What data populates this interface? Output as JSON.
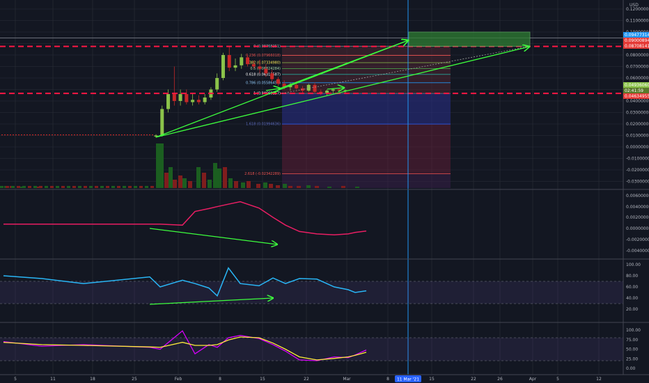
{
  "currency": "USD",
  "colors": {
    "background": "#131722",
    "grid": "#2a2e39",
    "bull": "#8bc34a",
    "bear": "#c62828",
    "arrow": "#3dff3d",
    "cursor": "#2196f3",
    "hline": "#ff1744",
    "macd": "#e91e63",
    "rsi": "#29b6f6",
    "stoch_k": "#d500f9",
    "stoch_d": "#ffeb3b"
  },
  "x_axis": {
    "labels": [
      "5",
      "11",
      "18",
      "25",
      "Feb",
      "8",
      "15",
      "22",
      "Mar",
      "8",
      "15",
      "22",
      "26",
      "Apr",
      "5",
      "12"
    ],
    "cursor_label": "11 Mar '21"
  },
  "price_axis": {
    "ticks": [
      "0.12000000",
      "0.11000000",
      "0.10000000",
      "0.09000000",
      "0.08000000",
      "0.07000000",
      "0.06000000",
      "0.05000000",
      "0.04000000",
      "0.03000000",
      "0.02000000",
      "0.01000000",
      "0.00000000",
      "-0.01000000",
      "-0.02000000",
      "-0.03000000"
    ],
    "price_badges": [
      {
        "text": "0.09477314",
        "color": "#2196f3"
      },
      {
        "text": "0.09000894",
        "color": "#e53935"
      },
      {
        "text": "0.08708141",
        "color": "#e53935"
      },
      {
        "text": "0.04936060",
        "color": "#8bc34a"
      },
      {
        "text": "02:41:59",
        "color": "#5a7a2a"
      },
      {
        "text": "0.04634955",
        "color": "#e53935"
      }
    ]
  },
  "fib_levels": [
    {
      "label": "0 (0.08768251)",
      "price": 0.08768251
    },
    {
      "label": "0.236 (0.07966018)",
      "price": 0.07966018
    },
    {
      "label": "0.382 (0.07334980)",
      "price": 0.0733498
    },
    {
      "label": "0.5 (0.06824284)",
      "price": 0.06824284
    },
    {
      "label": "0.618 (0.06313587)",
      "price": 0.06313587
    },
    {
      "label": "0.786 (0.05586454)",
      "price": 0.05586454
    },
    {
      "label": "1 (0.04660157)",
      "price": 0.04660157
    },
    {
      "label": "1.618 (0.01994636)",
      "price": 0.01994636
    },
    {
      "label": "2.618 (-0.02342289)",
      "price": -0.02342289
    }
  ],
  "macd_axis": {
    "ticks": [
      "0.00600000",
      "0.00400000",
      "0.00200000",
      "0.00000000",
      "-0.00200000",
      "-0.00400000"
    ]
  },
  "rsi_axis": {
    "ticks": [
      "100.00",
      "80.00",
      "60.00",
      "40.00",
      "20.00"
    ]
  },
  "stoch_axis": {
    "ticks": [
      "100.00",
      "75.00",
      "50.00",
      "25.00",
      "0.00"
    ]
  },
  "chart_data": {
    "type": "candlestick",
    "symbol_currency": "USD",
    "x_axis_range_days": [
      "Jan 5 2021",
      "Apr 12 2021"
    ],
    "y_axis_range": [
      -0.035,
      0.125
    ],
    "candles": [
      {
        "date": "Jan 27",
        "open": 0.009,
        "high": 0.011,
        "low": 0.008,
        "close": 0.01
      },
      {
        "date": "Jan 28",
        "open": 0.01,
        "high": 0.036,
        "low": 0.009,
        "close": 0.033
      },
      {
        "date": "Jan 29",
        "open": 0.033,
        "high": 0.05,
        "low": 0.03,
        "close": 0.046
      },
      {
        "date": "Jan 30",
        "open": 0.046,
        "high": 0.07,
        "low": 0.036,
        "close": 0.04
      },
      {
        "date": "Jan 31",
        "open": 0.04,
        "high": 0.05,
        "low": 0.036,
        "close": 0.046
      },
      {
        "date": "Feb 1",
        "open": 0.046,
        "high": 0.05,
        "low": 0.037,
        "close": 0.039
      },
      {
        "date": "Feb 2",
        "open": 0.039,
        "high": 0.047,
        "low": 0.036,
        "close": 0.041
      },
      {
        "date": "Feb 3",
        "open": 0.041,
        "high": 0.045,
        "low": 0.037,
        "close": 0.039
      },
      {
        "date": "Feb 4",
        "open": 0.039,
        "high": 0.046,
        "low": 0.037,
        "close": 0.043
      },
      {
        "date": "Feb 5",
        "open": 0.043,
        "high": 0.052,
        "low": 0.041,
        "close": 0.05
      },
      {
        "date": "Feb 6",
        "open": 0.05,
        "high": 0.064,
        "low": 0.048,
        "close": 0.06
      },
      {
        "date": "Feb 7",
        "open": 0.06,
        "high": 0.082,
        "low": 0.058,
        "close": 0.08
      },
      {
        "date": "Feb 8",
        "open": 0.08,
        "high": 0.087,
        "low": 0.066,
        "close": 0.069
      },
      {
        "date": "Feb 9",
        "open": 0.069,
        "high": 0.077,
        "low": 0.066,
        "close": 0.071
      },
      {
        "date": "Feb 10",
        "open": 0.071,
        "high": 0.081,
        "low": 0.068,
        "close": 0.078
      },
      {
        "date": "Feb 11",
        "open": 0.078,
        "high": 0.08,
        "low": 0.07,
        "close": 0.072
      },
      {
        "date": "Feb 12",
        "open": 0.072,
        "high": 0.075,
        "low": 0.068,
        "close": 0.07
      },
      {
        "date": "Feb 13",
        "open": 0.07,
        "high": 0.076,
        "low": 0.064,
        "close": 0.068
      },
      {
        "date": "Feb 14",
        "open": 0.068,
        "high": 0.072,
        "low": 0.061,
        "close": 0.064
      },
      {
        "date": "Feb 15",
        "open": 0.064,
        "high": 0.067,
        "low": 0.057,
        "close": 0.059
      },
      {
        "date": "Feb 16",
        "open": 0.059,
        "high": 0.061,
        "low": 0.053,
        "close": 0.055
      },
      {
        "date": "Feb 17",
        "open": 0.055,
        "high": 0.058,
        "low": 0.05,
        "close": 0.052
      },
      {
        "date": "Feb 18",
        "open": 0.052,
        "high": 0.056,
        "low": 0.049,
        "close": 0.054
      },
      {
        "date": "Feb 19",
        "open": 0.054,
        "high": 0.057,
        "low": 0.05,
        "close": 0.051
      },
      {
        "date": "Feb 20",
        "open": 0.051,
        "high": 0.053,
        "low": 0.047,
        "close": 0.049
      },
      {
        "date": "Feb 21",
        "open": 0.049,
        "high": 0.055,
        "low": 0.048,
        "close": 0.054
      },
      {
        "date": "Feb 22",
        "open": 0.054,
        "high": 0.056,
        "low": 0.047,
        "close": 0.048
      },
      {
        "date": "Feb 23",
        "open": 0.048,
        "high": 0.05,
        "low": 0.045,
        "close": 0.047
      },
      {
        "date": "Feb 24",
        "open": 0.047,
        "high": 0.05,
        "low": 0.045,
        "close": 0.049
      },
      {
        "date": "Feb 25",
        "open": 0.049,
        "high": 0.051,
        "low": 0.047,
        "close": 0.05
      },
      {
        "date": "Feb 26",
        "open": 0.05,
        "high": 0.051,
        "low": 0.048,
        "close": 0.049
      },
      {
        "date": "Feb 27",
        "open": 0.049,
        "high": 0.05,
        "low": 0.047,
        "close": 0.0494
      }
    ],
    "macd_series": [
      0.0003,
      0.0003,
      0.0003,
      0.0003,
      0.0003,
      0.0001,
      0.0029,
      0.0035,
      0.0039,
      0.0044,
      0.0049,
      0.0036,
      0.0017,
      0.0001,
      -0.0012,
      -0.0017,
      -0.0019,
      -0.0017,
      -0.0014,
      -0.0011
    ],
    "rsi_series": [
      80,
      75,
      66,
      78,
      60,
      72,
      66,
      58,
      44,
      94,
      66,
      62,
      76,
      66,
      75,
      74,
      60,
      55,
      50,
      53
    ],
    "stoch_k_series": [
      70,
      58,
      62,
      55,
      50,
      98,
      38,
      62,
      55,
      80,
      86,
      78,
      62,
      45,
      22,
      20,
      30,
      28,
      35,
      48
    ],
    "stoch_d_series": [
      68,
      62,
      60,
      56,
      55,
      68,
      60,
      60,
      62,
      74,
      82,
      80,
      66,
      50,
      30,
      22,
      26,
      30,
      34,
      42
    ]
  }
}
